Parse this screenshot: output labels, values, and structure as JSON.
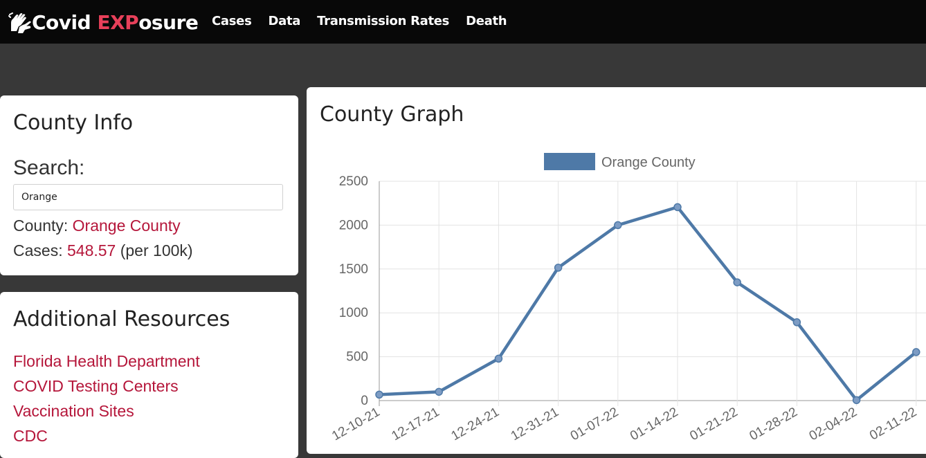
{
  "navbar": {
    "brand_prefix": "Covid ",
    "brand_accent": "EXP",
    "brand_suffix": "osure",
    "brand_icon": "hands-icon",
    "links": [
      "Cases",
      "Data",
      "Transmission Rates",
      "Death"
    ]
  },
  "county_info": {
    "title": "County Info",
    "search_label": "Search:",
    "search_value": "Orange",
    "county_label": "County:",
    "county_value": "Orange County",
    "cases_label": "Cases:",
    "cases_value": "548.57",
    "cases_unit": "(per 100k)"
  },
  "resources": {
    "title": "Additional Resources",
    "links": [
      "Florida Health Department",
      "COVID Testing Centers",
      "Vaccination Sites",
      "CDC"
    ]
  },
  "graph": {
    "title": "County Graph"
  },
  "colors": {
    "accent": "#e8405a",
    "link": "#b5163a",
    "series": "#4e79a7"
  },
  "chart_data": {
    "type": "line",
    "legend_position": "top",
    "grid": true,
    "x": [
      "12-10-21",
      "12-17-21",
      "12-24-21",
      "12-31-21",
      "01-07-22",
      "01-14-22",
      "01-21-22",
      "01-28-22",
      "02-04-22",
      "02-11-22"
    ],
    "series": [
      {
        "name": "Orange County",
        "values": [
          68,
          100,
          478,
          1515,
          2000,
          2205,
          1348,
          893,
          5,
          553
        ]
      }
    ],
    "ylim": [
      0,
      2500
    ],
    "yticks": [
      0,
      500,
      1000,
      1500,
      2000,
      2500
    ]
  }
}
